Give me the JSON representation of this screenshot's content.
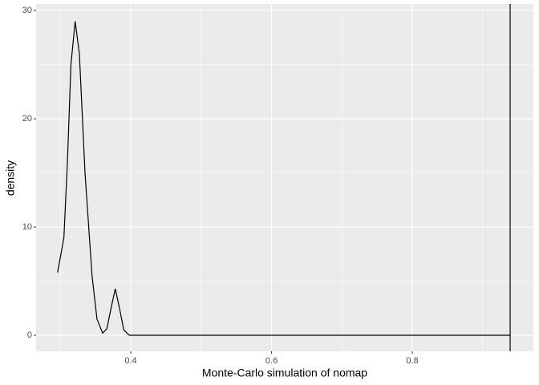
{
  "chart_data": {
    "type": "line",
    "x_label": "Monte-Carlo simulation of nomap",
    "y_label": "density",
    "x": [
      0.296,
      0.305,
      0.31,
      0.315,
      0.321,
      0.327,
      0.335,
      0.345,
      0.352,
      0.36,
      0.366,
      0.372,
      0.378,
      0.384,
      0.39,
      0.398,
      0.45,
      0.6,
      0.8,
      0.939
    ],
    "series": [
      {
        "color": "#000000",
        "values": [
          5.8,
          9,
          16,
          25,
          29,
          26,
          15,
          5.5,
          1.5,
          0.2,
          0.6,
          2.5,
          4.3,
          2.5,
          0.5,
          0,
          0,
          0,
          0,
          0
        ]
      }
    ],
    "vline": 0.939,
    "xlim": [
      0.2655,
      0.972
    ],
    "ylim": [
      -1.48,
      30.6
    ],
    "xticks": [
      0.4,
      0.6,
      0.8
    ],
    "yticks": [
      0,
      10,
      20,
      30
    ],
    "grid": true
  }
}
